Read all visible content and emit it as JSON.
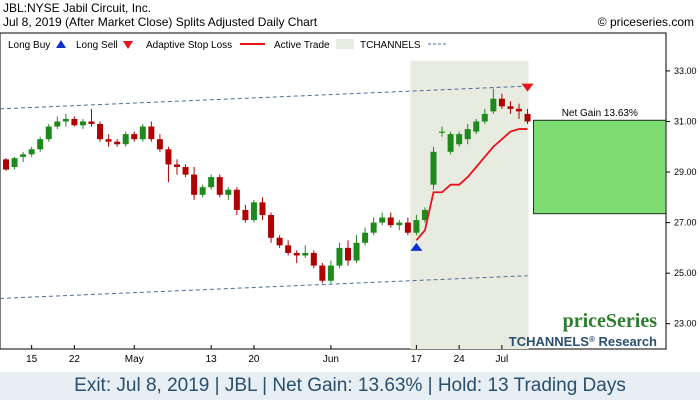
{
  "header": {
    "title_line1": "JBL:NYSE Jabil Circuit, Inc.",
    "title_line2": "Jul 8, 2019 (After Market Close)  Splits Adjusted Daily Chart",
    "copyright": "© priceseries.com"
  },
  "legend": {
    "long_buy": "Long Buy",
    "long_sell": "Long Sell",
    "adaptive_stop": "Adaptive Stop Loss",
    "active_trade": "Active Trade",
    "tchannels": "TCHANNELS"
  },
  "annotations": {
    "net_gain": "Net Gain 13.63%"
  },
  "branding": {
    "logo": "priceSeries",
    "tagline_prefix": "TCHANNELS",
    "tagline_reg": "®",
    "tagline_suffix": " Research"
  },
  "footer": {
    "summary": "Exit: Jul 8, 2019 | JBL | Net Gain: 13.63% | Hold: 13 Trading Days"
  },
  "colors": {
    "up": "#1e8a1e",
    "down": "#b00000",
    "stop": "#e8141c",
    "buy_arrow": "#1030d0",
    "sell_arrow": "#e8141c",
    "channel": "#4a6f96",
    "active_fill": "#e8ebe0",
    "gain_fill": "#7ddc74"
  },
  "chart_data": {
    "type": "candlestick",
    "ylim": [
      22,
      34.5
    ],
    "y_ticks": [
      23,
      25,
      27,
      29,
      31,
      33
    ],
    "x_tick_labels": [
      {
        "label": "15",
        "index": 3
      },
      {
        "label": "22",
        "index": 8
      },
      {
        "label": "May",
        "index": 15
      },
      {
        "label": "13",
        "index": 24
      },
      {
        "label": "20",
        "index": 29
      },
      {
        "label": "Jun",
        "index": 38
      },
      {
        "label": "17",
        "index": 48
      },
      {
        "label": "24",
        "index": 53
      },
      {
        "label": "Jul",
        "index": 58
      }
    ],
    "candles": [
      {
        "o": 29.5,
        "h": 29.55,
        "l": 29.05,
        "c": 29.1
      },
      {
        "o": 29.2,
        "h": 29.6,
        "l": 29.1,
        "c": 29.55
      },
      {
        "o": 29.6,
        "h": 29.8,
        "l": 29.4,
        "c": 29.7
      },
      {
        "o": 29.7,
        "h": 30.0,
        "l": 29.6,
        "c": 29.9
      },
      {
        "o": 29.9,
        "h": 30.4,
        "l": 29.8,
        "c": 30.3
      },
      {
        "o": 30.3,
        "h": 30.9,
        "l": 30.2,
        "c": 30.8
      },
      {
        "o": 30.8,
        "h": 31.2,
        "l": 30.7,
        "c": 31.0
      },
      {
        "o": 31.0,
        "h": 31.3,
        "l": 30.8,
        "c": 31.1
      },
      {
        "o": 31.1,
        "h": 31.2,
        "l": 30.8,
        "c": 30.85
      },
      {
        "o": 30.85,
        "h": 31.1,
        "l": 30.7,
        "c": 31.0
      },
      {
        "o": 31.0,
        "h": 31.5,
        "l": 30.8,
        "c": 30.9
      },
      {
        "o": 30.9,
        "h": 31.0,
        "l": 30.2,
        "c": 30.3
      },
      {
        "o": 30.3,
        "h": 30.5,
        "l": 30.0,
        "c": 30.2
      },
      {
        "o": 30.2,
        "h": 30.3,
        "l": 30.0,
        "c": 30.1
      },
      {
        "o": 30.1,
        "h": 30.6,
        "l": 30.0,
        "c": 30.5
      },
      {
        "o": 30.5,
        "h": 30.6,
        "l": 30.2,
        "c": 30.3
      },
      {
        "o": 30.3,
        "h": 30.9,
        "l": 30.2,
        "c": 30.8
      },
      {
        "o": 30.8,
        "h": 31.0,
        "l": 30.2,
        "c": 30.3
      },
      {
        "o": 30.3,
        "h": 30.5,
        "l": 29.8,
        "c": 29.9
      },
      {
        "o": 29.9,
        "h": 30.0,
        "l": 28.6,
        "c": 29.3
      },
      {
        "o": 29.3,
        "h": 29.5,
        "l": 28.9,
        "c": 29.2
      },
      {
        "o": 29.2,
        "h": 29.3,
        "l": 28.8,
        "c": 28.9
      },
      {
        "o": 28.9,
        "h": 29.2,
        "l": 27.9,
        "c": 28.1
      },
      {
        "o": 28.1,
        "h": 28.5,
        "l": 28.0,
        "c": 28.4
      },
      {
        "o": 28.4,
        "h": 28.9,
        "l": 28.3,
        "c": 28.8
      },
      {
        "o": 28.8,
        "h": 28.9,
        "l": 28.0,
        "c": 28.1
      },
      {
        "o": 28.1,
        "h": 28.4,
        "l": 27.9,
        "c": 28.3
      },
      {
        "o": 28.3,
        "h": 28.4,
        "l": 27.3,
        "c": 27.5
      },
      {
        "o": 27.5,
        "h": 27.7,
        "l": 27.0,
        "c": 27.1
      },
      {
        "o": 27.1,
        "h": 27.9,
        "l": 27.0,
        "c": 27.8
      },
      {
        "o": 27.8,
        "h": 28.0,
        "l": 27.1,
        "c": 27.3
      },
      {
        "o": 27.3,
        "h": 27.4,
        "l": 26.2,
        "c": 26.4
      },
      {
        "o": 26.4,
        "h": 26.5,
        "l": 26.0,
        "c": 26.1
      },
      {
        "o": 26.1,
        "h": 26.3,
        "l": 25.7,
        "c": 25.8
      },
      {
        "o": 25.8,
        "h": 25.9,
        "l": 25.4,
        "c": 25.7
      },
      {
        "o": 25.7,
        "h": 26.1,
        "l": 25.6,
        "c": 25.8
      },
      {
        "o": 25.8,
        "h": 25.9,
        "l": 25.2,
        "c": 25.3
      },
      {
        "o": 25.3,
        "h": 25.4,
        "l": 24.6,
        "c": 24.7
      },
      {
        "o": 24.7,
        "h": 25.5,
        "l": 24.6,
        "c": 25.3
      },
      {
        "o": 25.3,
        "h": 26.2,
        "l": 25.2,
        "c": 26.0
      },
      {
        "o": 26.0,
        "h": 26.3,
        "l": 25.3,
        "c": 25.5
      },
      {
        "o": 25.5,
        "h": 26.5,
        "l": 25.4,
        "c": 26.2
      },
      {
        "o": 26.2,
        "h": 26.8,
        "l": 26.1,
        "c": 26.6
      },
      {
        "o": 26.6,
        "h": 27.2,
        "l": 26.5,
        "c": 27.0
      },
      {
        "o": 27.0,
        "h": 27.4,
        "l": 26.9,
        "c": 27.2
      },
      {
        "o": 27.2,
        "h": 27.4,
        "l": 26.8,
        "c": 26.9
      },
      {
        "o": 26.9,
        "h": 27.1,
        "l": 26.7,
        "c": 27.0
      },
      {
        "o": 27.0,
        "h": 27.2,
        "l": 26.5,
        "c": 26.6
      },
      {
        "o": 26.6,
        "h": 27.3,
        "l": 26.5,
        "c": 27.1
      },
      {
        "o": 27.1,
        "h": 27.6,
        "l": 27.0,
        "c": 27.5
      },
      {
        "o": 28.5,
        "h": 30.0,
        "l": 28.3,
        "c": 29.8
      },
      {
        "o": 30.6,
        "h": 30.8,
        "l": 30.4,
        "c": 30.6
      },
      {
        "o": 29.8,
        "h": 30.6,
        "l": 29.7,
        "c": 30.5
      },
      {
        "o": 30.1,
        "h": 30.6,
        "l": 30.0,
        "c": 30.5
      },
      {
        "o": 30.3,
        "h": 30.9,
        "l": 30.1,
        "c": 30.7
      },
      {
        "o": 30.6,
        "h": 31.1,
        "l": 30.5,
        "c": 31.0
      },
      {
        "o": 31.0,
        "h": 31.5,
        "l": 30.9,
        "c": 31.3
      },
      {
        "o": 31.4,
        "h": 32.3,
        "l": 31.3,
        "c": 31.9
      },
      {
        "o": 31.9,
        "h": 32.1,
        "l": 31.5,
        "c": 31.6
      },
      {
        "o": 31.6,
        "h": 31.8,
        "l": 31.3,
        "c": 31.5
      },
      {
        "o": 31.5,
        "h": 31.7,
        "l": 31.1,
        "c": 31.4
      },
      {
        "o": 31.3,
        "h": 31.5,
        "l": 30.9,
        "c": 31.0
      }
    ],
    "stop_line": [
      {
        "i": 48,
        "v": 26.3
      },
      {
        "i": 49,
        "v": 26.7
      },
      {
        "i": 50,
        "v": 28.2
      },
      {
        "i": 51,
        "v": 28.2
      },
      {
        "i": 52,
        "v": 28.5
      },
      {
        "i": 53,
        "v": 28.5
      },
      {
        "i": 54,
        "v": 28.8
      },
      {
        "i": 55,
        "v": 29.2
      },
      {
        "i": 56,
        "v": 29.6
      },
      {
        "i": 57,
        "v": 30.0
      },
      {
        "i": 58,
        "v": 30.3
      },
      {
        "i": 59,
        "v": 30.6
      },
      {
        "i": 60,
        "v": 30.7
      },
      {
        "i": 61,
        "v": 30.7
      }
    ],
    "channel_upper": [
      {
        "i": 0,
        "v": 31.5
      },
      {
        "i": 61,
        "v": 32.4
      }
    ],
    "channel_lower": [
      {
        "i": 0,
        "v": 24.0
      },
      {
        "i": 61,
        "v": 24.9
      }
    ],
    "active_trade_range": [
      48,
      61
    ],
    "long_buy": {
      "i": 48,
      "v": 26.0
    },
    "long_sell": {
      "i": 61,
      "v": 32.3
    },
    "gain_box": {
      "from": 27.35,
      "to": 31.05
    },
    "grid": false,
    "legend_position": "top"
  }
}
